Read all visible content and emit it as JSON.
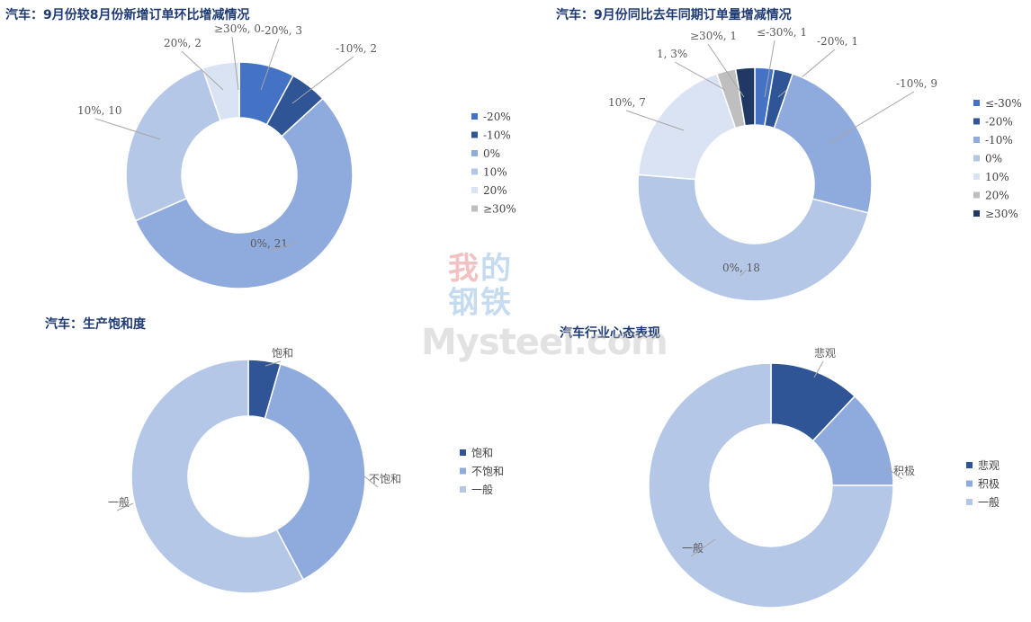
{
  "chart_data": [
    {
      "id": "c1",
      "type": "pie",
      "title": "汽车：9月份较8月份新增订单环比增减情况",
      "slices": [
        {
          "label": "-20%",
          "value": 3,
          "color": "#4472c4",
          "callout": "-20%, 3"
        },
        {
          "label": "-10%",
          "value": 2,
          "color": "#2f5597",
          "callout": "-10%, 2"
        },
        {
          "label": "0%",
          "value": 21,
          "color": "#8faadc",
          "callout": "0%, 21"
        },
        {
          "label": "10%",
          "value": 10,
          "color": "#b4c7e7",
          "callout": "10%, 10"
        },
        {
          "label": "20%",
          "value": 2,
          "color": "#dae3f3",
          "callout": "20%, 2"
        },
        {
          "label": "≥30%",
          "value": 0,
          "color": "#bfbfbf",
          "callout": "≥30%, 0"
        }
      ],
      "legend": [
        "-20%",
        "-10%",
        "0%",
        "10%",
        "20%",
        "≥30%"
      ]
    },
    {
      "id": "c2",
      "type": "pie",
      "title": "汽车：9月份同比去年同期订单量增减情况",
      "slices": [
        {
          "label": "≤-30%",
          "value": 1,
          "color": "#4472c4",
          "callout": "≤-30%, 1"
        },
        {
          "label": "-20%",
          "value": 1,
          "color": "#2f5597",
          "callout": "-20%, 1"
        },
        {
          "label": "-10%",
          "value": 9,
          "color": "#8faadc",
          "callout": "-10%, 9"
        },
        {
          "label": "0%",
          "value": 18,
          "color": "#b4c7e7",
          "callout": "0%, 18"
        },
        {
          "label": "10%",
          "value": 7,
          "color": "#dae3f3",
          "callout": "10%, 7"
        },
        {
          "label": "20%",
          "value": 1,
          "color": "#bfbfbf",
          "callout": "1, 3%"
        },
        {
          "label": "≥30%",
          "value": 1,
          "color": "#203864",
          "callout": "≥30%, 1"
        }
      ],
      "legend": [
        "≤-30%",
        "-20%",
        "-10%",
        "0%",
        "10%",
        "20%",
        "≥30%"
      ]
    },
    {
      "id": "c3",
      "type": "pie",
      "title": "汽车：生产饱和度",
      "slices": [
        {
          "label": "饱和",
          "value": 2,
          "color": "#2f5597",
          "callout": "饱和"
        },
        {
          "label": "不饱和",
          "value": 17,
          "color": "#8faadc",
          "callout": "不饱和"
        },
        {
          "label": "一般",
          "value": 26,
          "color": "#b4c7e7",
          "callout": "一般"
        }
      ],
      "legend": [
        "饱和",
        "不饱和",
        "一般"
      ]
    },
    {
      "id": "c4",
      "type": "pie",
      "title": "汽车行业心态表现",
      "slices": [
        {
          "label": "悲观",
          "value": 6,
          "color": "#2f5597",
          "callout": "悲观"
        },
        {
          "label": "积极",
          "value": 6.5,
          "color": "#8faadc",
          "callout": "积极"
        },
        {
          "label": "一般",
          "value": 37.5,
          "color": "#b4c7e7",
          "callout": "一般"
        }
      ],
      "legend": [
        "悲观",
        "积极",
        "一般"
      ]
    }
  ],
  "watermark": {
    "line1a": "我",
    "line1b": "的",
    "line2a": "钢",
    "line2b": "铁",
    "brand": "Mysteel.com"
  }
}
